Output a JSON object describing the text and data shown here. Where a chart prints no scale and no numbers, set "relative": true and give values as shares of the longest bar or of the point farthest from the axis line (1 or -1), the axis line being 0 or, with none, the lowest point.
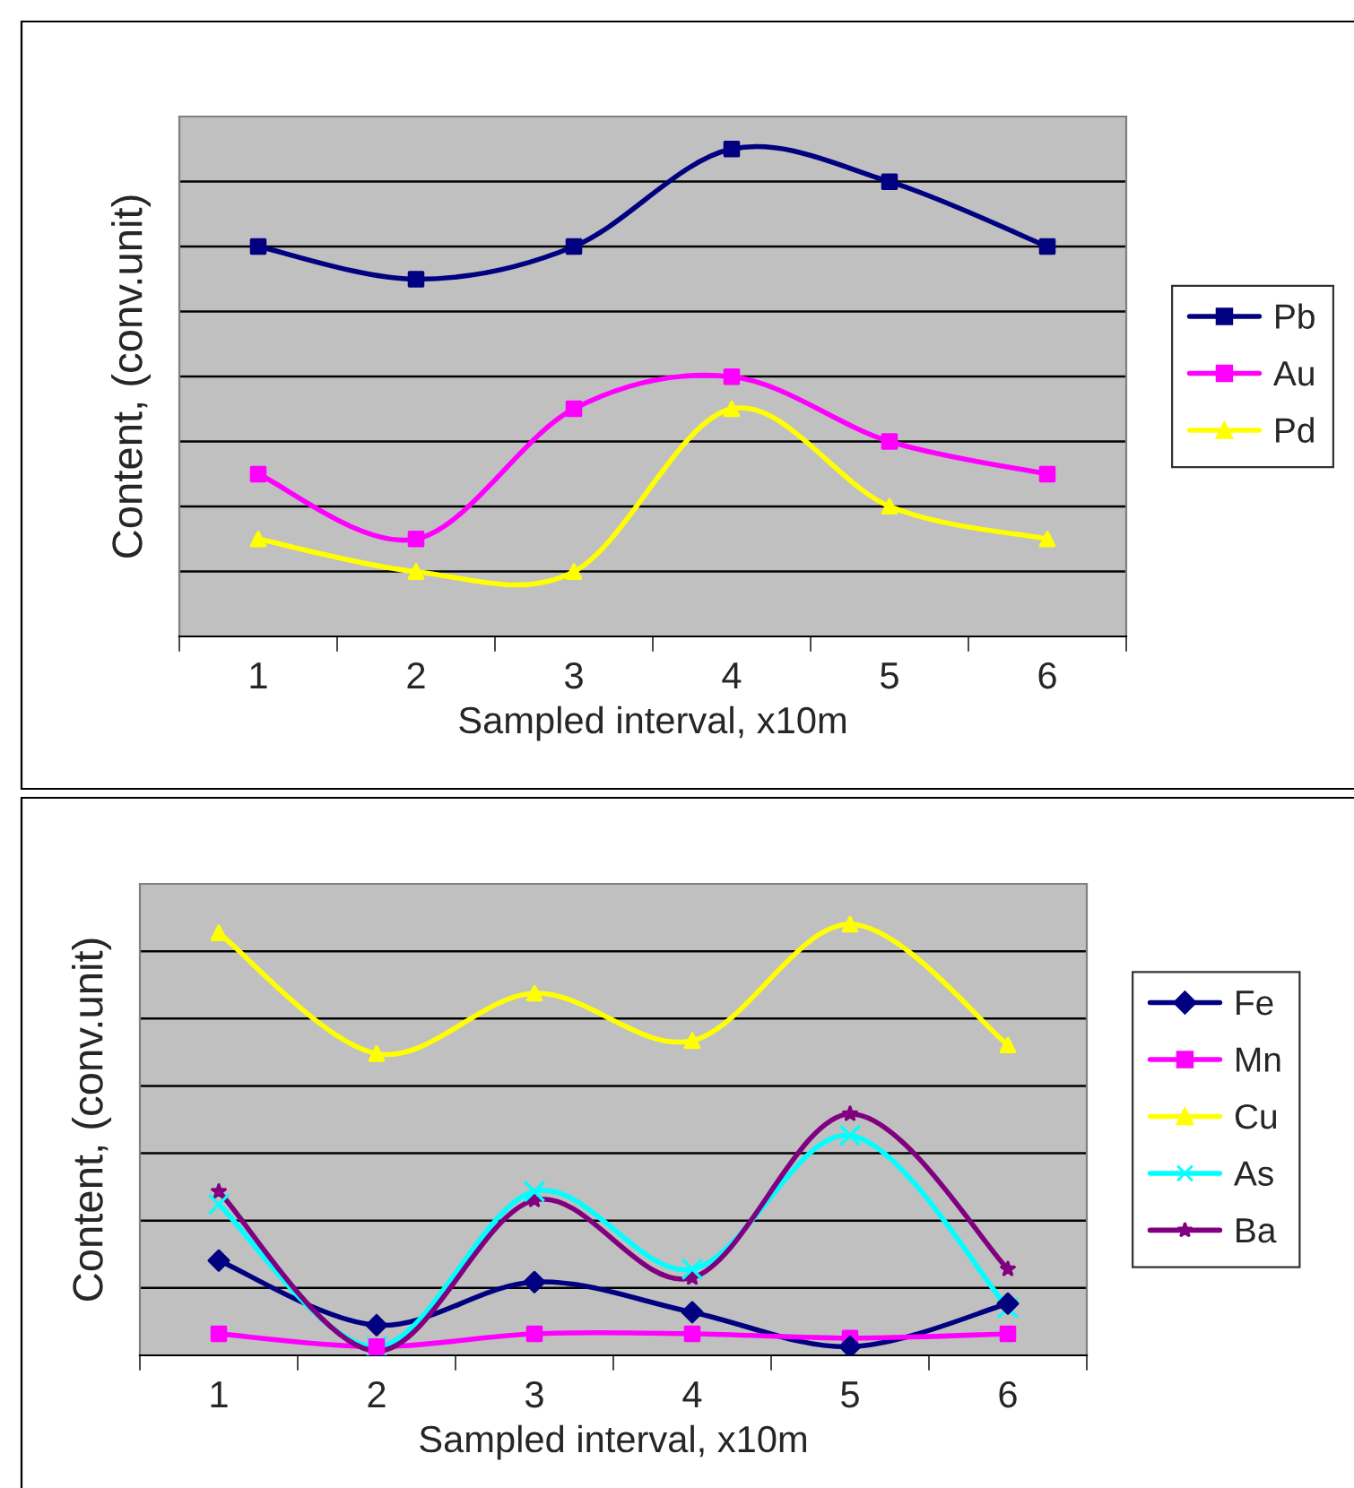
{
  "chart_data": [
    {
      "type": "line",
      "relative": true,
      "xlabel": "Sampled interval, x10m",
      "ylabel": "Content, (conv.unit)",
      "categories": [
        "1",
        "2",
        "3",
        "4",
        "5",
        "6"
      ],
      "grid": "y",
      "legend": "right",
      "series": [
        {
          "name": "Pb",
          "color": "#000080",
          "marker": "square",
          "values": [
            0.8,
            0.733,
            0.8,
            1,
            0.933,
            0.8
          ]
        },
        {
          "name": "Au",
          "color": "#ff00ff",
          "marker": "square",
          "values": [
            0.333,
            0.2,
            0.467,
            0.533,
            0.4,
            0.333
          ]
        },
        {
          "name": "Pd",
          "color": "#ffff00",
          "marker": "triangle",
          "values": [
            0.2,
            0.133,
            0.133,
            0.467,
            0.267,
            0.2
          ]
        }
      ]
    },
    {
      "type": "line",
      "relative": true,
      "xlabel": "Sampled interval, x10m",
      "ylabel": "Content, (conv.unit)",
      "categories": [
        "1",
        "2",
        "3",
        "4",
        "5",
        "6"
      ],
      "grid": "y",
      "legend": "right",
      "series": [
        {
          "name": "Fe",
          "color": "#000080",
          "marker": "diamond",
          "values": [
            0.22,
            0.07,
            0.17,
            0.1,
            0.02,
            0.12
          ]
        },
        {
          "name": "Mn",
          "color": "#ff00ff",
          "marker": "square",
          "values": [
            0.05,
            0.02,
            0.05,
            0.05,
            0.04,
            0.05
          ]
        },
        {
          "name": "Cu",
          "color": "#ffff00",
          "marker": "triangle",
          "values": [
            0.98,
            0.7,
            0.84,
            0.73,
            1,
            0.72
          ]
        },
        {
          "name": "As",
          "color": "#00ffff",
          "marker": "cross",
          "values": [
            0.35,
            0.02,
            0.38,
            0.2,
            0.51,
            0.11
          ]
        },
        {
          "name": "Ba",
          "color": "#800080",
          "marker": "star",
          "values": [
            0.38,
            0.01,
            0.36,
            0.18,
            0.56,
            0.2
          ]
        }
      ]
    }
  ]
}
